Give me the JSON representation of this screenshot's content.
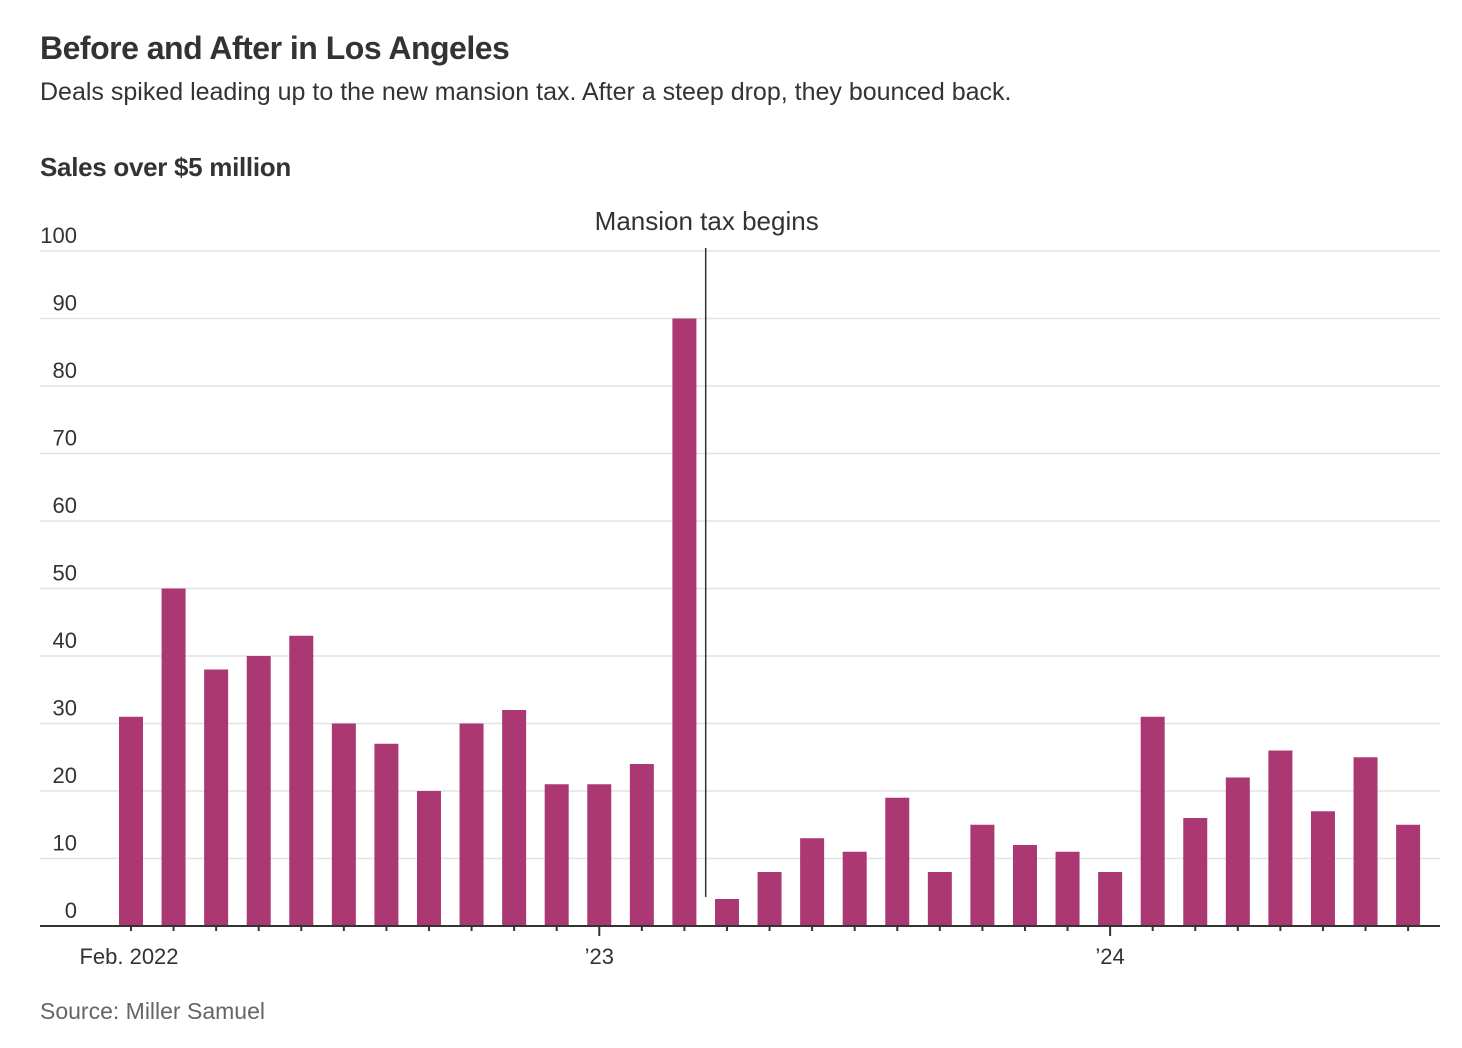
{
  "header": {
    "title": "Before and After in Los Angeles",
    "subtitle": "Deals spiked leading up to the new mansion tax. After a steep drop, they bounced back.",
    "chart_label": "Sales over $5 million"
  },
  "footer": {
    "source": "Source: Miller Samuel"
  },
  "colors": {
    "bar": "#ab3873",
    "grid": "#e3e3e3",
    "axis": "#333333",
    "annotation_line": "#333333"
  },
  "chart_data": {
    "type": "bar",
    "title": "Before and After in Los Angeles",
    "subtitle": "Deals spiked leading up to the new mansion tax. After a steep drop, they bounced back.",
    "ylabel": "Sales over $5 million",
    "xlabel": "",
    "ylim": [
      0,
      100
    ],
    "yticks": [
      0,
      10,
      20,
      30,
      40,
      50,
      60,
      70,
      80,
      90,
      100
    ],
    "grid": true,
    "categories": [
      "Feb 2022",
      "Mar 2022",
      "Apr 2022",
      "May 2022",
      "Jun 2022",
      "Jul 2022",
      "Aug 2022",
      "Sep 2022",
      "Oct 2022",
      "Nov 2022",
      "Dec 2022",
      "Jan 2023",
      "Feb 2023",
      "Mar 2023",
      "Apr 2023",
      "May 2023",
      "Jun 2023",
      "Jul 2023",
      "Aug 2023",
      "Sep 2023",
      "Oct 2023",
      "Nov 2023",
      "Dec 2023",
      "Jan 2024",
      "Feb 2024",
      "Mar 2024",
      "Apr 2024",
      "May 2024",
      "Jun 2024",
      "Jul 2024",
      "Aug 2024"
    ],
    "values": [
      31,
      50,
      38,
      40,
      43,
      30,
      27,
      20,
      30,
      32,
      21,
      21,
      24,
      90,
      4,
      8,
      13,
      11,
      19,
      8,
      15,
      12,
      11,
      8,
      31,
      16,
      22,
      26,
      17,
      25,
      15
    ],
    "xtick_labels": [
      {
        "index": 0,
        "label": "Feb. 2022",
        "major": false
      },
      {
        "index": 11,
        "label": "’23",
        "major": true
      },
      {
        "index": 23,
        "label": "’24",
        "major": true
      }
    ],
    "annotations": [
      {
        "text": "Mansion tax begins",
        "between_index": [
          13,
          14
        ],
        "type": "vertical-line"
      }
    ],
    "source": "Miller Samuel"
  }
}
